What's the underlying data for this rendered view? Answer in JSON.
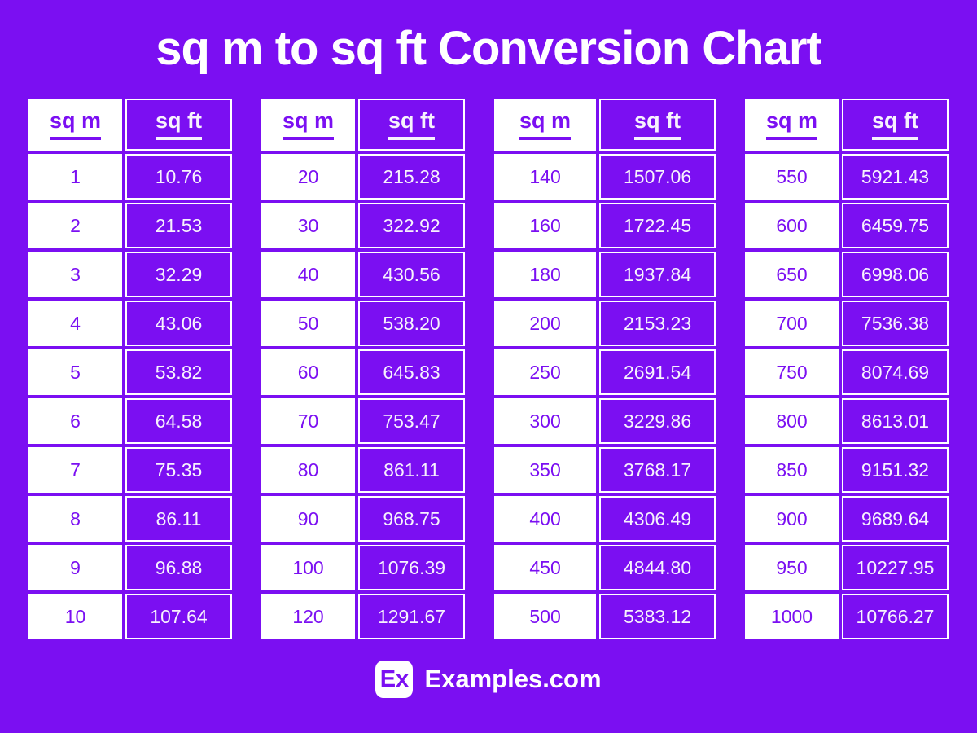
{
  "title": "sq m to sq ft Conversion Chart",
  "header": {
    "col_m": "sq m",
    "col_ft": "sq ft"
  },
  "chart_data": {
    "type": "table",
    "title": "sq m to sq ft Conversion Chart",
    "columns": [
      "sq m",
      "sq ft"
    ],
    "tables": [
      {
        "rows": [
          [
            "1",
            "10.76"
          ],
          [
            "2",
            "21.53"
          ],
          [
            "3",
            "32.29"
          ],
          [
            "4",
            "43.06"
          ],
          [
            "5",
            "53.82"
          ],
          [
            "6",
            "64.58"
          ],
          [
            "7",
            "75.35"
          ],
          [
            "8",
            "86.11"
          ],
          [
            "9",
            "96.88"
          ],
          [
            "10",
            "107.64"
          ]
        ]
      },
      {
        "rows": [
          [
            "20",
            "215.28"
          ],
          [
            "30",
            "322.92"
          ],
          [
            "40",
            "430.56"
          ],
          [
            "50",
            "538.20"
          ],
          [
            "60",
            "645.83"
          ],
          [
            "70",
            "753.47"
          ],
          [
            "80",
            "861.11"
          ],
          [
            "90",
            "968.75"
          ],
          [
            "100",
            "1076.39"
          ],
          [
            "120",
            "1291.67"
          ]
        ]
      },
      {
        "rows": [
          [
            "140",
            "1507.06"
          ],
          [
            "160",
            "1722.45"
          ],
          [
            "180",
            "1937.84"
          ],
          [
            "200",
            "2153.23"
          ],
          [
            "250",
            "2691.54"
          ],
          [
            "300",
            "3229.86"
          ],
          [
            "350",
            "3768.17"
          ],
          [
            "400",
            "4306.49"
          ],
          [
            "450",
            "4844.80"
          ],
          [
            "500",
            "5383.12"
          ]
        ]
      },
      {
        "rows": [
          [
            "550",
            "5921.43"
          ],
          [
            "600",
            "6459.75"
          ],
          [
            "650",
            "6998.06"
          ],
          [
            "700",
            "7536.38"
          ],
          [
            "750",
            "8074.69"
          ],
          [
            "800",
            "8613.01"
          ],
          [
            "850",
            "9151.32"
          ],
          [
            "900",
            "9689.64"
          ],
          [
            "950",
            "10227.95"
          ],
          [
            "1000",
            "10766.27"
          ]
        ]
      }
    ]
  },
  "footer": {
    "logo": "Ex",
    "brand": "Examples.com"
  },
  "colors": {
    "background": "#7B0FF2",
    "cell_purple": "#7B0FF2",
    "cell_white": "#FFFFFF",
    "text_on_purple": "#F7F2FD",
    "text_on_white": "#7B0FF2",
    "title_text": "#FFFFFF"
  }
}
